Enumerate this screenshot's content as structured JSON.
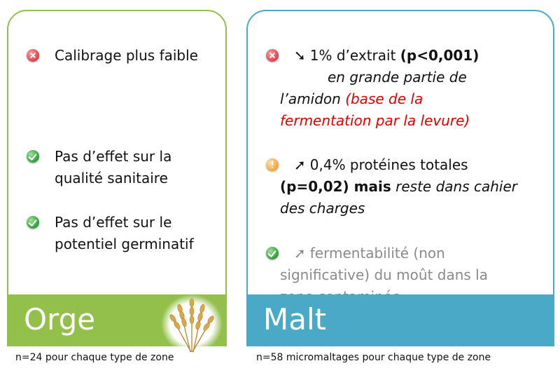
{
  "orge": {
    "items": [
      {
        "icon": "cross-icon",
        "text": "Calibrage plus faible"
      },
      {
        "icon": "check-icon",
        "line1": "Pas d’effet sur la",
        "line2": "qualité sanitaire"
      },
      {
        "icon": "check-icon",
        "line1": "Pas d’effet sur le",
        "line2": "potentiel germinatif"
      }
    ],
    "footer_label": "Orge",
    "caption": "n=24 pour chaque type de zone"
  },
  "malt": {
    "item1": {
      "icon": "cross-icon",
      "arrow": "➘",
      "text": "1% d’extrait",
      "stat": "(p<0,001)",
      "line2": "en grande partie de",
      "line3": "l’amidon",
      "red1": "(base de la",
      "red2": "fermentation par la levure)"
    },
    "item2": {
      "icon": "warning-icon",
      "arrow": "➚",
      "text": "0,4% protéines totales",
      "stat": "(p=0,02) mais",
      "italic1": "reste dans cahier",
      "italic2": "des charges"
    },
    "item3": {
      "icon": "check-icon",
      "arrow": "➚",
      "line1": "fermentabilité (non",
      "line2": "significative) du moût dans la",
      "line3": "zone contaminée"
    },
    "footer_label": "Malt",
    "caption": "n=58 micromaltages pour chaque type de zone"
  },
  "colors": {
    "orge": "#92c04a",
    "malt": "#4aa9c6",
    "highlight": "#e00000"
  }
}
